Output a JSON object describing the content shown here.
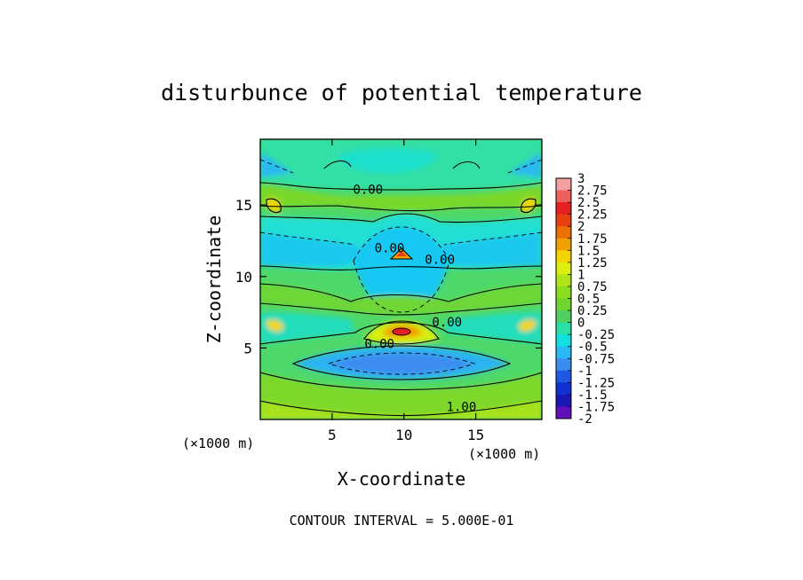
{
  "chart_data": {
    "type": "heatmap",
    "title": "disturbunce of potential temperature",
    "xlabel": "X-coordinate",
    "ylabel": "Z-coordinate",
    "x_unit": "(×1000 m)",
    "y_unit": "(×1000 m)",
    "xlim": [
      0,
      19.6
    ],
    "ylim": [
      0,
      19.6
    ],
    "x_ticks": [
      5,
      10,
      15
    ],
    "y_ticks": [
      5,
      10,
      15
    ],
    "contour_labels": [
      {
        "text": "0.00",
        "x": 7.5,
        "y": 15.8
      },
      {
        "text": "0.00",
        "x": 9.0,
        "y": 11.7
      },
      {
        "text": "0.00",
        "x": 12.5,
        "y": 10.9
      },
      {
        "text": "0.00",
        "x": 13.0,
        "y": 6.5
      },
      {
        "text": "0.00",
        "x": 8.3,
        "y": 5.0
      },
      {
        "text": "1.00",
        "x": 14.0,
        "y": 0.6
      }
    ],
    "features": [
      {
        "kind": "warm-core",
        "x": 9.9,
        "y": 6.3,
        "value": 2.0
      },
      {
        "kind": "warm-core",
        "x": 9.9,
        "y": 11.5,
        "value": 1.75
      },
      {
        "kind": "cold-band",
        "x": 9.9,
        "y": 4.2,
        "value": -0.75
      },
      {
        "kind": "cold-dome",
        "x": 9.9,
        "y": 8.8,
        "value": -0.25
      },
      {
        "kind": "warm-floor",
        "x": 9.9,
        "y": 0.8,
        "value": 1.0
      }
    ],
    "colorbar": {
      "labels": [
        "3",
        "2.75",
        "2.5",
        "2.25",
        "2",
        "1.75",
        "1.5",
        "1.25",
        "1",
        "0.75",
        "0.5",
        "0.25",
        "0",
        "-0.25",
        "-0.5",
        "-0.75",
        "-1",
        "-1.25",
        "-1.5",
        "-1.75",
        "-2"
      ],
      "colors": [
        "#f4a0a0",
        "#ee6060",
        "#e52020",
        "#e84010",
        "#ec7000",
        "#f0a000",
        "#f4d400",
        "#dcee10",
        "#b0e418",
        "#8cdc20",
        "#70d430",
        "#50d060",
        "#28e0a8",
        "#10e0e0",
        "#28b8f4",
        "#3c8cf0",
        "#2058e4",
        "#1030d0",
        "#1818b4",
        "#6010b8"
      ]
    },
    "footer": "CONTOUR INTERVAL = 5.000E-01"
  }
}
